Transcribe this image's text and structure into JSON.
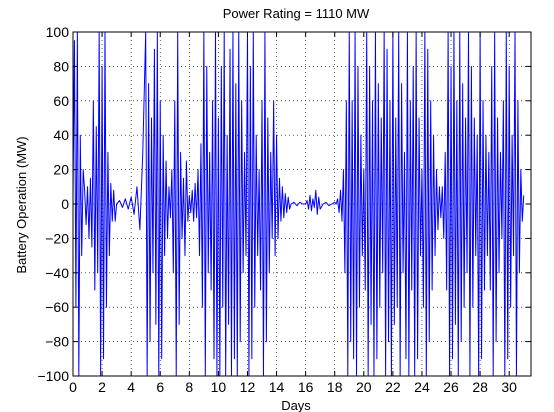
{
  "chart_data": {
    "type": "line",
    "title": "Power Rating = 1110 MW",
    "xlabel": "Days",
    "ylabel": "Battery Operation (MW)",
    "xlim": [
      0,
      31.5
    ],
    "ylim": [
      -100,
      100
    ],
    "xticks": [
      0,
      2,
      4,
      6,
      8,
      10,
      12,
      14,
      16,
      18,
      20,
      22,
      24,
      26,
      28,
      30
    ],
    "yticks": [
      -100,
      -80,
      -60,
      -40,
      -20,
      0,
      20,
      40,
      60,
      80,
      100
    ],
    "ytick_labels": [
      "−100",
      "−80",
      "−60",
      "−40",
      "−20",
      "0",
      "20",
      "40",
      "60",
      "80",
      "100"
    ],
    "grid": true,
    "grid_style": "dotted",
    "line_color": "#0000ff",
    "series": [
      {
        "x": [
          0.0,
          0.1,
          0.2,
          0.3,
          0.4,
          0.5,
          0.6,
          0.7,
          0.8,
          0.9,
          1.0,
          1.1,
          1.2,
          1.3,
          1.4,
          1.5,
          1.6,
          1.7,
          1.8,
          1.9,
          2.0,
          2.1,
          2.2,
          2.3,
          2.4,
          2.5,
          2.6,
          2.7,
          2.8,
          2.9,
          3.0,
          3.2,
          3.4,
          3.6,
          3.8,
          4.0,
          4.2,
          4.4,
          4.6,
          4.8,
          5.0,
          5.1,
          5.2,
          5.3,
          5.4,
          5.5,
          5.6,
          5.7,
          5.8,
          5.9,
          6.0,
          6.1,
          6.2,
          6.3,
          6.4,
          6.5,
          6.6,
          6.7,
          6.8,
          6.9,
          7.0,
          7.1,
          7.2,
          7.3,
          7.4,
          7.5,
          7.6,
          7.7,
          7.8,
          7.9,
          8.0,
          8.1,
          8.2,
          8.3,
          8.4,
          8.5,
          8.6,
          8.7,
          8.8,
          8.9,
          9.0,
          9.1,
          9.2,
          9.3,
          9.4,
          9.5,
          9.6,
          9.7,
          9.8,
          9.9,
          10.0,
          10.1,
          10.2,
          10.3,
          10.4,
          10.5,
          10.6,
          10.7,
          10.8,
          10.9,
          11.0,
          11.1,
          11.2,
          11.3,
          11.4,
          11.5,
          11.6,
          11.7,
          11.8,
          11.9,
          12.0,
          12.1,
          12.2,
          12.3,
          12.4,
          12.5,
          12.6,
          12.7,
          12.8,
          12.9,
          13.0,
          13.1,
          13.2,
          13.3,
          13.4,
          13.5,
          13.6,
          13.7,
          13.8,
          13.9,
          14.0,
          14.1,
          14.2,
          14.3,
          14.4,
          14.5,
          14.6,
          14.7,
          14.8,
          14.9,
          15.0,
          15.2,
          15.4,
          15.6,
          15.8,
          16.0,
          16.1,
          16.2,
          16.3,
          16.4,
          16.5,
          16.6,
          16.7,
          16.8,
          16.9,
          17.0,
          17.2,
          17.4,
          17.6,
          17.8,
          18.0,
          18.1,
          18.2,
          18.3,
          18.4,
          18.5,
          18.6,
          18.7,
          18.8,
          18.9,
          19.0,
          19.1,
          19.2,
          19.3,
          19.4,
          19.5,
          19.6,
          19.7,
          19.8,
          19.9,
          20.0,
          20.1,
          20.2,
          20.3,
          20.4,
          20.5,
          20.6,
          20.7,
          20.8,
          20.9,
          21.0,
          21.1,
          21.2,
          21.3,
          21.4,
          21.5,
          21.6,
          21.7,
          21.8,
          21.9,
          22.0,
          22.1,
          22.2,
          22.3,
          22.4,
          22.5,
          22.6,
          22.7,
          22.8,
          22.9,
          23.0,
          23.1,
          23.2,
          23.3,
          23.4,
          23.5,
          23.6,
          23.7,
          23.8,
          23.9,
          24.0,
          24.1,
          24.2,
          24.3,
          24.4,
          24.5,
          24.6,
          24.7,
          24.8,
          24.9,
          25.0,
          25.1,
          25.2,
          25.3,
          25.4,
          25.5,
          25.6,
          25.7,
          25.8,
          25.9,
          26.0,
          26.1,
          26.2,
          26.3,
          26.4,
          26.5,
          26.6,
          26.7,
          26.8,
          26.9,
          27.0,
          27.1,
          27.2,
          27.3,
          27.4,
          27.5,
          27.6,
          27.7,
          27.8,
          27.9,
          28.0,
          28.1,
          28.2,
          28.3,
          28.4,
          28.5,
          28.6,
          28.7,
          28.8,
          28.9,
          29.0,
          29.1,
          29.2,
          29.3,
          29.4,
          29.5,
          29.6,
          29.7,
          29.8,
          29.9,
          30.0,
          30.1,
          30.2,
          30.3,
          30.4,
          30.5,
          30.6,
          30.7,
          30.8,
          30.9,
          31.0
        ],
        "y": [
          5,
          95,
          -60,
          100,
          -100,
          40,
          -30,
          20,
          8,
          -12,
          10,
          -20,
          15,
          -25,
          60,
          -50,
          45,
          -40,
          100,
          -100,
          80,
          -90,
          100,
          -60,
          30,
          -30,
          12,
          -10,
          8,
          -10,
          0,
          2,
          -2,
          3,
          -3,
          4,
          -6,
          10,
          -15,
          30,
          100,
          -100,
          70,
          -80,
          50,
          -40,
          90,
          -70,
          100,
          -100,
          60,
          -90,
          40,
          -30,
          25,
          -20,
          10,
          -8,
          20,
          -40,
          60,
          -100,
          100,
          -70,
          30,
          -20,
          15,
          -30,
          25,
          -10,
          5,
          -5,
          8,
          -10,
          12,
          -8,
          20,
          -30,
          35,
          -60,
          100,
          -100,
          80,
          -40,
          30,
          -50,
          60,
          -90,
          100,
          -100,
          50,
          -100,
          80,
          -60,
          100,
          -100,
          40,
          -70,
          90,
          -100,
          100,
          -90,
          70,
          -100,
          100,
          -80,
          60,
          -40,
          30,
          -30,
          100,
          -100,
          80,
          -90,
          100,
          -60,
          40,
          -30,
          20,
          -50,
          60,
          -100,
          100,
          -80,
          50,
          -40,
          30,
          -20,
          60,
          -30,
          40,
          -20,
          15,
          -10,
          10,
          -8,
          6,
          -5,
          4,
          -3,
          0,
          1,
          -1,
          1,
          0,
          0,
          2,
          -3,
          5,
          -4,
          3,
          -2,
          8,
          -6,
          4,
          -3,
          0,
          1,
          -1,
          0,
          1,
          0,
          3,
          -5,
          8,
          -10,
          20,
          -40,
          60,
          -100,
          100,
          -80,
          60,
          -90,
          100,
          -100,
          80,
          -60,
          40,
          -30,
          20,
          -50,
          100,
          -100,
          80,
          -70,
          60,
          -100,
          100,
          -90,
          70,
          -60,
          50,
          -40,
          100,
          -100,
          90,
          -80,
          60,
          -100,
          100,
          -70,
          50,
          -60,
          100,
          -100,
          70,
          -40,
          30,
          -90,
          100,
          -100,
          60,
          -50,
          80,
          -100,
          100,
          -90,
          50,
          -30,
          20,
          -60,
          100,
          -100,
          90,
          -80,
          60,
          -50,
          40,
          -30,
          20,
          -15,
          10,
          -8,
          10,
          -20,
          30,
          -50,
          100,
          -100,
          80,
          -90,
          100,
          -70,
          60,
          -100,
          100,
          -80,
          70,
          -60,
          50,
          -40,
          100,
          -100,
          80,
          -60,
          50,
          -30,
          40,
          -100,
          100,
          -90,
          60,
          -50,
          40,
          -30,
          30,
          -50,
          80,
          -100,
          100,
          -80,
          50,
          -40,
          30,
          -20,
          60,
          -100,
          100,
          -90,
          80,
          -60,
          40,
          -30,
          100,
          -100,
          60,
          -40,
          20,
          -10,
          5
        ]
      }
    ]
  }
}
